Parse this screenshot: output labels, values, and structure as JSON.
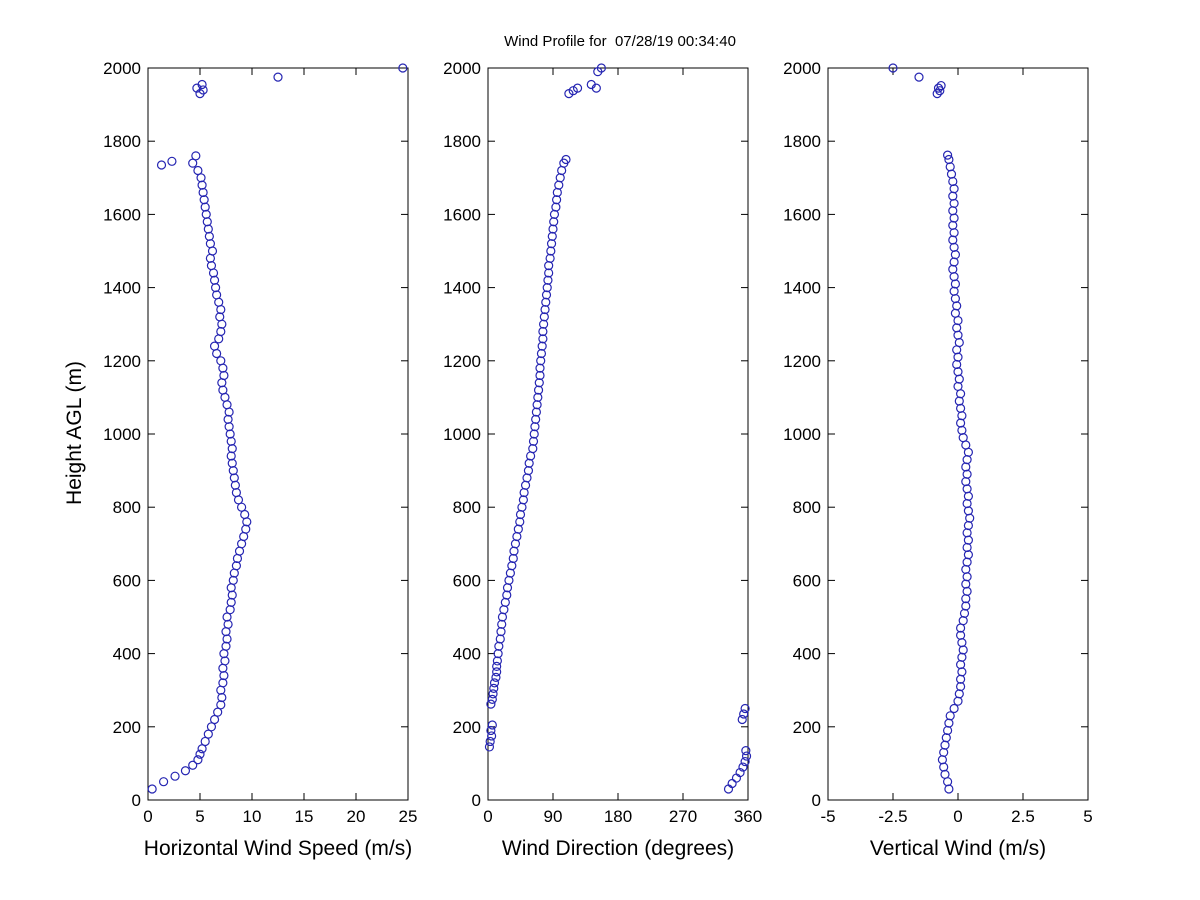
{
  "title": "Wind Profile for  07/28/19 00:34:40",
  "ylabel": "Height AGL (m)",
  "marker_color": "#2525b2",
  "background": "#ffffff",
  "chart_data": [
    {
      "type": "scatter",
      "xlabel": "Horizontal Wind Speed (m/s)",
      "ylabel": "Height AGL (m)",
      "xlim": [
        0,
        25
      ],
      "ylim": [
        0,
        2000
      ],
      "xticks": [
        0,
        5,
        10,
        15,
        20,
        25
      ],
      "yticks": [
        0,
        200,
        400,
        600,
        800,
        1000,
        1200,
        1400,
        1600,
        1800,
        2000
      ],
      "points": [
        [
          0.4,
          30
        ],
        [
          1.5,
          50
        ],
        [
          2.6,
          65
        ],
        [
          3.6,
          80
        ],
        [
          4.3,
          95
        ],
        [
          4.8,
          110
        ],
        [
          5.0,
          125
        ],
        [
          5.2,
          140
        ],
        [
          5.5,
          160
        ],
        [
          5.8,
          180
        ],
        [
          6.1,
          200
        ],
        [
          6.4,
          220
        ],
        [
          6.7,
          240
        ],
        [
          7.0,
          260
        ],
        [
          7.1,
          280
        ],
        [
          7.0,
          300
        ],
        [
          7.2,
          320
        ],
        [
          7.3,
          340
        ],
        [
          7.2,
          360
        ],
        [
          7.4,
          380
        ],
        [
          7.3,
          400
        ],
        [
          7.5,
          420
        ],
        [
          7.6,
          440
        ],
        [
          7.5,
          460
        ],
        [
          7.7,
          480
        ],
        [
          7.6,
          500
        ],
        [
          7.9,
          520
        ],
        [
          8.0,
          540
        ],
        [
          8.1,
          560
        ],
        [
          8.0,
          580
        ],
        [
          8.2,
          600
        ],
        [
          8.3,
          620
        ],
        [
          8.5,
          640
        ],
        [
          8.6,
          660
        ],
        [
          8.8,
          680
        ],
        [
          9.0,
          700
        ],
        [
          9.2,
          720
        ],
        [
          9.4,
          740
        ],
        [
          9.5,
          760
        ],
        [
          9.3,
          780
        ],
        [
          9.0,
          800
        ],
        [
          8.7,
          820
        ],
        [
          8.5,
          840
        ],
        [
          8.4,
          860
        ],
        [
          8.3,
          880
        ],
        [
          8.2,
          900
        ],
        [
          8.1,
          920
        ],
        [
          8.0,
          940
        ],
        [
          8.1,
          960
        ],
        [
          8.0,
          980
        ],
        [
          7.9,
          1000
        ],
        [
          7.8,
          1020
        ],
        [
          7.7,
          1040
        ],
        [
          7.8,
          1060
        ],
        [
          7.6,
          1080
        ],
        [
          7.4,
          1100
        ],
        [
          7.2,
          1120
        ],
        [
          7.1,
          1140
        ],
        [
          7.3,
          1160
        ],
        [
          7.2,
          1180
        ],
        [
          7.0,
          1200
        ],
        [
          6.6,
          1220
        ],
        [
          6.4,
          1240
        ],
        [
          6.8,
          1260
        ],
        [
          7.0,
          1280
        ],
        [
          7.1,
          1300
        ],
        [
          6.9,
          1320
        ],
        [
          7.0,
          1340
        ],
        [
          6.8,
          1360
        ],
        [
          6.6,
          1380
        ],
        [
          6.5,
          1400
        ],
        [
          6.4,
          1420
        ],
        [
          6.3,
          1440
        ],
        [
          6.1,
          1460
        ],
        [
          6.0,
          1480
        ],
        [
          6.2,
          1500
        ],
        [
          6.0,
          1520
        ],
        [
          5.9,
          1540
        ],
        [
          5.8,
          1560
        ],
        [
          5.7,
          1580
        ],
        [
          5.6,
          1600
        ],
        [
          5.5,
          1620
        ],
        [
          5.4,
          1640
        ],
        [
          5.3,
          1660
        ],
        [
          5.2,
          1680
        ],
        [
          5.1,
          1700
        ],
        [
          4.8,
          1720
        ],
        [
          1.3,
          1735
        ],
        [
          4.3,
          1740
        ],
        [
          2.3,
          1745
        ],
        [
          4.6,
          1760
        ],
        [
          5.0,
          1930
        ],
        [
          5.3,
          1940
        ],
        [
          4.7,
          1945
        ],
        [
          5.2,
          1955
        ],
        [
          12.5,
          1975
        ],
        [
          24.5,
          2000
        ]
      ]
    },
    {
      "type": "scatter",
      "xlabel": "Wind Direction (degrees)",
      "ylabel": "Height AGL (m)",
      "xlim": [
        0,
        360
      ],
      "ylim": [
        0,
        2000
      ],
      "xticks": [
        0,
        90,
        180,
        270,
        360
      ],
      "yticks": [
        0,
        200,
        400,
        600,
        800,
        1000,
        1200,
        1400,
        1600,
        1800,
        2000
      ],
      "points": [
        [
          333,
          30
        ],
        [
          338,
          45
        ],
        [
          344,
          60
        ],
        [
          349,
          75
        ],
        [
          353,
          90
        ],
        [
          356,
          105
        ],
        [
          358,
          120
        ],
        [
          357,
          135
        ],
        [
          2,
          145
        ],
        [
          3,
          160
        ],
        [
          5,
          175
        ],
        [
          4,
          190
        ],
        [
          6,
          205
        ],
        [
          352,
          220
        ],
        [
          354,
          235
        ],
        [
          356,
          250
        ],
        [
          4,
          262
        ],
        [
          6,
          275
        ],
        [
          7,
          290
        ],
        [
          8,
          305
        ],
        [
          9,
          320
        ],
        [
          11,
          335
        ],
        [
          12,
          350
        ],
        [
          12,
          365
        ],
        [
          13,
          380
        ],
        [
          14,
          400
        ],
        [
          15,
          420
        ],
        [
          17,
          440
        ],
        [
          18,
          460
        ],
        [
          19,
          480
        ],
        [
          20,
          500
        ],
        [
          22,
          520
        ],
        [
          24,
          540
        ],
        [
          26,
          560
        ],
        [
          27,
          580
        ],
        [
          29,
          600
        ],
        [
          31,
          620
        ],
        [
          33,
          640
        ],
        [
          35,
          660
        ],
        [
          36,
          680
        ],
        [
          38,
          700
        ],
        [
          40,
          720
        ],
        [
          42,
          740
        ],
        [
          44,
          760
        ],
        [
          45,
          780
        ],
        [
          47,
          800
        ],
        [
          49,
          820
        ],
        [
          50,
          840
        ],
        [
          52,
          860
        ],
        [
          54,
          880
        ],
        [
          56,
          900
        ],
        [
          57,
          920
        ],
        [
          59,
          940
        ],
        [
          62,
          960
        ],
        [
          63,
          980
        ],
        [
          64,
          1000
        ],
        [
          65,
          1020
        ],
        [
          66,
          1040
        ],
        [
          67,
          1060
        ],
        [
          68,
          1080
        ],
        [
          69,
          1100
        ],
        [
          70,
          1120
        ],
        [
          71,
          1140
        ],
        [
          72,
          1160
        ],
        [
          72,
          1180
        ],
        [
          73,
          1200
        ],
        [
          74,
          1220
        ],
        [
          75,
          1240
        ],
        [
          76,
          1260
        ],
        [
          76,
          1280
        ],
        [
          77,
          1300
        ],
        [
          78,
          1320
        ],
        [
          79,
          1340
        ],
        [
          80,
          1360
        ],
        [
          81,
          1380
        ],
        [
          82,
          1400
        ],
        [
          83,
          1420
        ],
        [
          84,
          1440
        ],
        [
          84,
          1460
        ],
        [
          86,
          1480
        ],
        [
          87,
          1500
        ],
        [
          88,
          1520
        ],
        [
          89,
          1540
        ],
        [
          90,
          1560
        ],
        [
          91,
          1580
        ],
        [
          92,
          1600
        ],
        [
          94,
          1620
        ],
        [
          95,
          1640
        ],
        [
          96,
          1660
        ],
        [
          98,
          1680
        ],
        [
          100,
          1700
        ],
        [
          102,
          1720
        ],
        [
          105,
          1740
        ],
        [
          108,
          1750
        ],
        [
          112,
          1930
        ],
        [
          118,
          1938
        ],
        [
          124,
          1945
        ],
        [
          150,
          1945
        ],
        [
          143,
          1955
        ],
        [
          152,
          1990
        ],
        [
          157,
          2000
        ]
      ]
    },
    {
      "type": "scatter",
      "xlabel": "Vertical Wind (m/s)",
      "ylabel": "Height AGL (m)",
      "xlim": [
        -5,
        5
      ],
      "ylim": [
        0,
        2000
      ],
      "xticks": [
        -5,
        -2.5,
        0,
        2.5,
        5
      ],
      "yticks": [
        0,
        200,
        400,
        600,
        800,
        1000,
        1200,
        1400,
        1600,
        1800,
        2000
      ],
      "points": [
        [
          -0.35,
          30
        ],
        [
          -0.4,
          50
        ],
        [
          -0.5,
          70
        ],
        [
          -0.55,
          90
        ],
        [
          -0.6,
          110
        ],
        [
          -0.55,
          130
        ],
        [
          -0.5,
          150
        ],
        [
          -0.45,
          170
        ],
        [
          -0.4,
          190
        ],
        [
          -0.35,
          210
        ],
        [
          -0.3,
          230
        ],
        [
          -0.15,
          250
        ],
        [
          0.0,
          270
        ],
        [
          0.05,
          290
        ],
        [
          0.1,
          310
        ],
        [
          0.1,
          330
        ],
        [
          0.15,
          350
        ],
        [
          0.1,
          370
        ],
        [
          0.15,
          390
        ],
        [
          0.2,
          410
        ],
        [
          0.15,
          430
        ],
        [
          0.1,
          450
        ],
        [
          0.1,
          470
        ],
        [
          0.2,
          490
        ],
        [
          0.25,
          510
        ],
        [
          0.3,
          530
        ],
        [
          0.3,
          550
        ],
        [
          0.35,
          570
        ],
        [
          0.3,
          590
        ],
        [
          0.35,
          610
        ],
        [
          0.3,
          630
        ],
        [
          0.35,
          650
        ],
        [
          0.4,
          670
        ],
        [
          0.35,
          690
        ],
        [
          0.4,
          710
        ],
        [
          0.35,
          730
        ],
        [
          0.4,
          750
        ],
        [
          0.45,
          770
        ],
        [
          0.4,
          790
        ],
        [
          0.35,
          810
        ],
        [
          0.4,
          830
        ],
        [
          0.35,
          850
        ],
        [
          0.3,
          870
        ],
        [
          0.35,
          890
        ],
        [
          0.3,
          910
        ],
        [
          0.35,
          930
        ],
        [
          0.4,
          950
        ],
        [
          0.3,
          970
        ],
        [
          0.2,
          990
        ],
        [
          0.15,
          1010
        ],
        [
          0.1,
          1030
        ],
        [
          0.15,
          1050
        ],
        [
          0.1,
          1070
        ],
        [
          0.05,
          1090
        ],
        [
          0.1,
          1110
        ],
        [
          0.0,
          1130
        ],
        [
          0.05,
          1150
        ],
        [
          0.0,
          1170
        ],
        [
          -0.05,
          1190
        ],
        [
          0.0,
          1210
        ],
        [
          -0.05,
          1230
        ],
        [
          0.05,
          1250
        ],
        [
          0.0,
          1270
        ],
        [
          -0.05,
          1290
        ],
        [
          0.0,
          1310
        ],
        [
          -0.1,
          1330
        ],
        [
          -0.05,
          1350
        ],
        [
          -0.1,
          1370
        ],
        [
          -0.15,
          1390
        ],
        [
          -0.1,
          1410
        ],
        [
          -0.15,
          1430
        ],
        [
          -0.2,
          1450
        ],
        [
          -0.15,
          1470
        ],
        [
          -0.1,
          1490
        ],
        [
          -0.15,
          1510
        ],
        [
          -0.2,
          1530
        ],
        [
          -0.15,
          1550
        ],
        [
          -0.2,
          1570
        ],
        [
          -0.15,
          1590
        ],
        [
          -0.2,
          1610
        ],
        [
          -0.15,
          1630
        ],
        [
          -0.2,
          1650
        ],
        [
          -0.15,
          1670
        ],
        [
          -0.2,
          1690
        ],
        [
          -0.25,
          1710
        ],
        [
          -0.3,
          1730
        ],
        [
          -0.35,
          1750
        ],
        [
          -0.4,
          1762
        ],
        [
          -0.8,
          1930
        ],
        [
          -0.7,
          1938
        ],
        [
          -0.75,
          1945
        ],
        [
          -0.65,
          1952
        ],
        [
          -1.5,
          1975
        ],
        [
          -2.5,
          2000
        ]
      ]
    }
  ]
}
